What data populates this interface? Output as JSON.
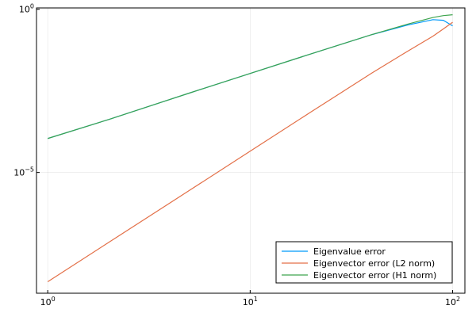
{
  "chart_data": {
    "type": "line",
    "title": "",
    "xlabel": "",
    "ylabel": "",
    "xscale": "log",
    "yscale": "log",
    "xlim": [
      0.88,
      115
    ],
    "ylim": [
      2e-09,
      1.1
    ],
    "grid": true,
    "legend_position": "bottom-right",
    "x_ticks": [
      {
        "value": 1,
        "base": "10",
        "exp": "0"
      },
      {
        "value": 10,
        "base": "10",
        "exp": "1"
      },
      {
        "value": 100,
        "base": "10",
        "exp": "2"
      }
    ],
    "y_ticks": [
      {
        "value": 1e-05,
        "base": "10",
        "exp": "−5"
      },
      {
        "value": 1,
        "base": "10",
        "exp": "0"
      }
    ],
    "x": [
      1,
      2,
      5,
      10,
      20,
      40,
      60,
      80,
      90,
      100
    ],
    "series": [
      {
        "name": "Eigenvalue error",
        "color": "#009AFA",
        "values": [
          0.00011,
          0.00042,
          0.0027,
          0.0108,
          0.0432,
          0.168,
          0.33,
          0.48,
          0.46,
          0.31
        ]
      },
      {
        "name": "Eigenvector error (L2 norm)",
        "color": "#E36F47",
        "values": [
          4.5e-09,
          7.2e-08,
          2.8e-06,
          4.5e-05,
          0.00072,
          0.0112,
          0.052,
          0.15,
          0.25,
          0.4
        ]
      },
      {
        "name": "Eigenvector error (H1 norm)",
        "color": "#3EA44E",
        "values": [
          0.00011,
          0.00042,
          0.0027,
          0.0108,
          0.0432,
          0.168,
          0.35,
          0.56,
          0.64,
          0.68
        ]
      }
    ]
  }
}
